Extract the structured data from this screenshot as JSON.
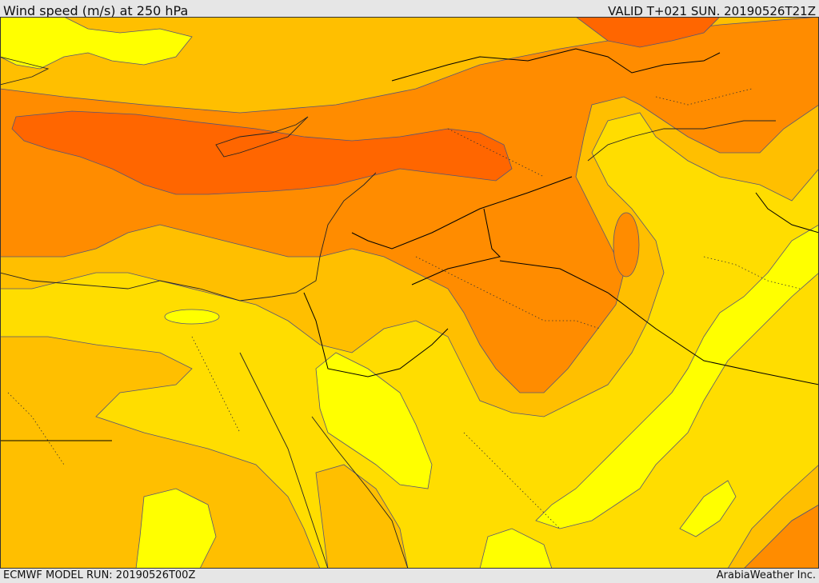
{
  "header": {
    "title": "Wind speed (m/s) at 250 hPa",
    "valid_time": "VALID T+021 SUN. 20190526T21Z"
  },
  "footer": {
    "model_run": "ECMWF MODEL RUN: 20190526T00Z",
    "credit": "ArabiaWeather Inc."
  },
  "colors": {
    "background": "#ffdd00",
    "band_light": "#ffff00",
    "band_mid": "#ffbf00",
    "band_strong": "#ff8c00",
    "band_jet": "#ff6600",
    "contour": "#555577",
    "border": "#000000"
  }
}
